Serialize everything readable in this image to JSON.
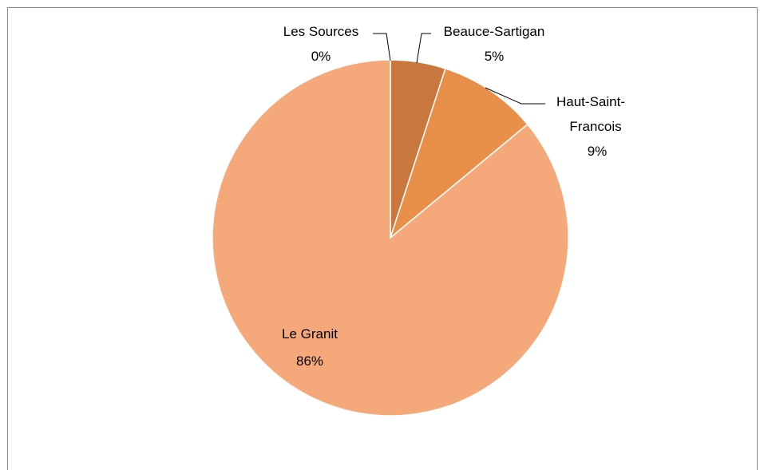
{
  "chart_data": {
    "type": "pie",
    "title": "",
    "slices": [
      {
        "name": "Les Sources",
        "value": 0,
        "label_name": "Les Sources",
        "label_pct": "0%",
        "color": "#c0703a"
      },
      {
        "name": "Beauce-Sartigan",
        "value": 5,
        "label_name": "Beauce-Sartigan",
        "label_pct": "5%",
        "color": "#c9773e"
      },
      {
        "name": "Haut-Saint-Francois",
        "value": 9,
        "label_name_lines": [
          "Haut-Saint-",
          "Francois"
        ],
        "label_pct": "9%",
        "color": "#e8904a"
      },
      {
        "name": "Le Granit",
        "value": 86,
        "label_name": "Le Granit",
        "label_pct": "86%",
        "color": "#f5a97b"
      }
    ],
    "legend": "none",
    "data_labels": "category-and-percent"
  }
}
